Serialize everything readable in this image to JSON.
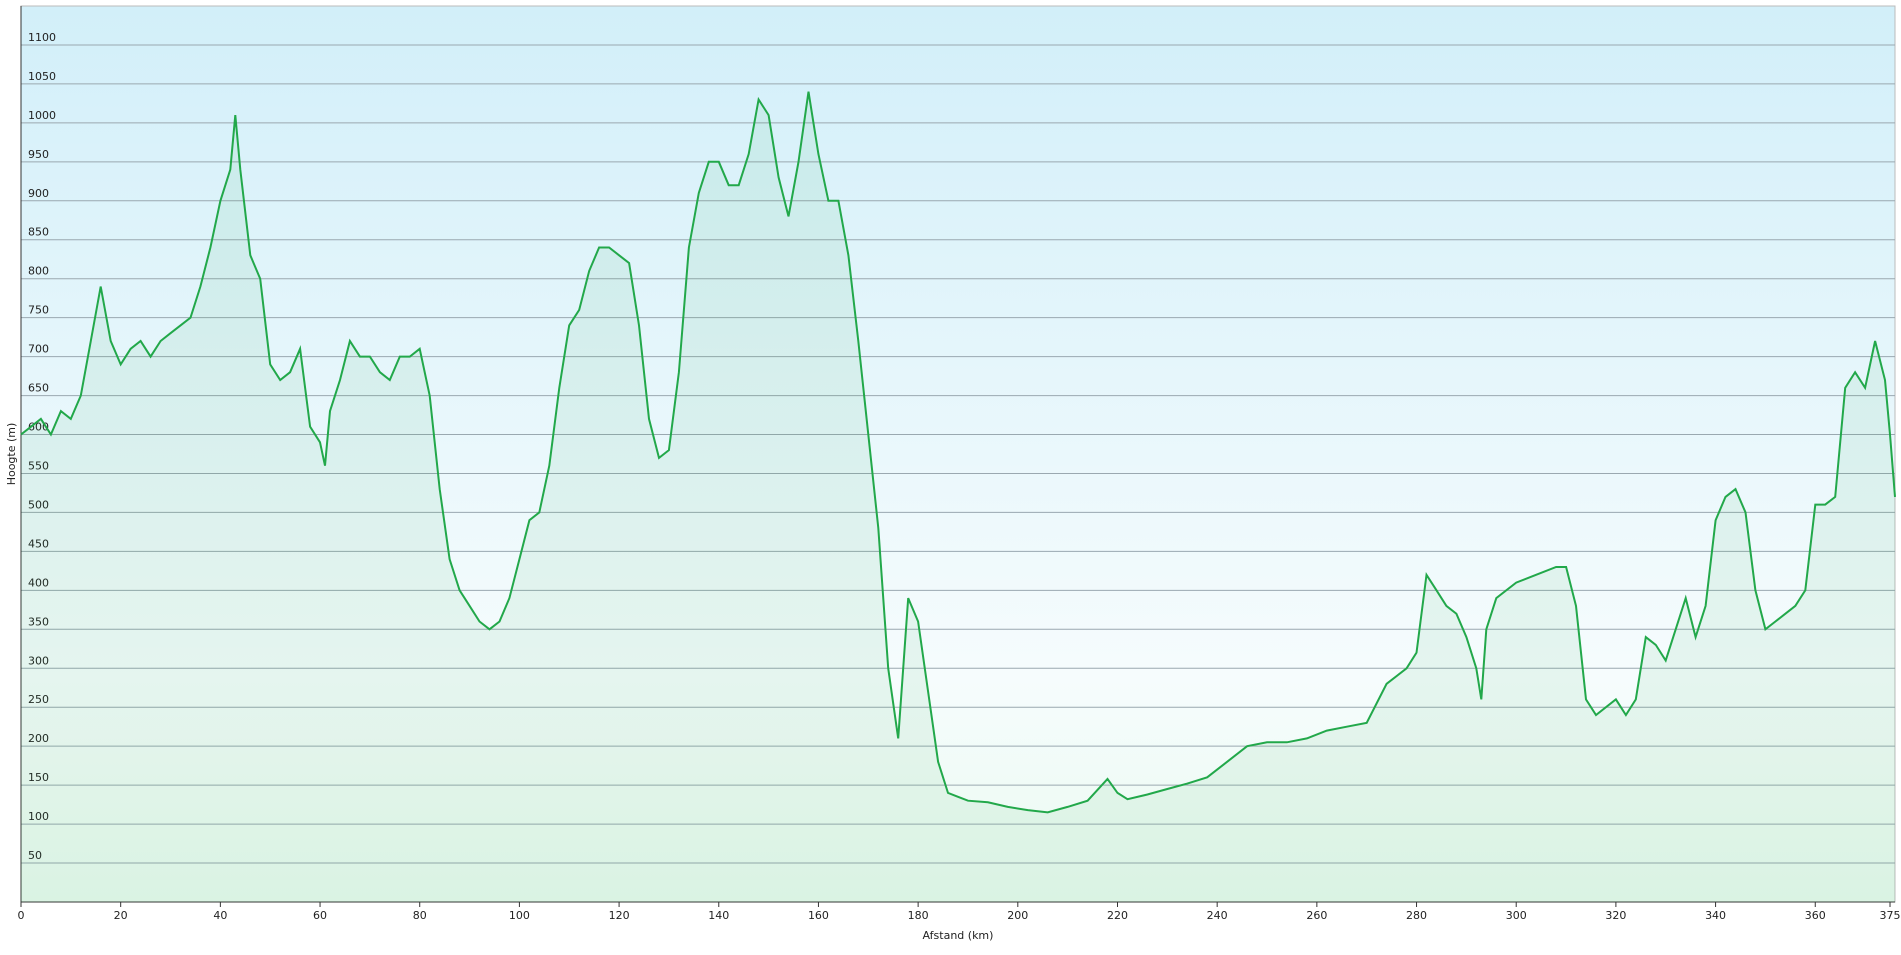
{
  "chart_data": {
    "type": "area",
    "x_label": "Afstand (km)",
    "y_label": "Hoogte (m)",
    "color": "#22a84a",
    "xlim": [
      0,
      376
    ],
    "ylim": [
      0,
      1150
    ],
    "xticks": [
      0,
      20,
      40,
      60,
      80,
      100,
      120,
      140,
      160,
      180,
      200,
      220,
      240,
      260,
      280,
      300,
      320,
      340,
      360,
      375
    ],
    "yticks": [
      50,
      100,
      150,
      200,
      250,
      300,
      350,
      400,
      450,
      500,
      550,
      600,
      650,
      700,
      750,
      800,
      850,
      900,
      950,
      1000,
      1050,
      1100
    ],
    "grid": true,
    "x": [
      0,
      2,
      4,
      6,
      8,
      10,
      12,
      14,
      16,
      18,
      20,
      22,
      24,
      26,
      28,
      30,
      32,
      34,
      36,
      38,
      40,
      42,
      43,
      44,
      46,
      48,
      50,
      52,
      54,
      56,
      58,
      60,
      61,
      62,
      64,
      66,
      68,
      70,
      72,
      74,
      76,
      78,
      80,
      82,
      84,
      86,
      88,
      90,
      92,
      94,
      96,
      98,
      100,
      102,
      104,
      106,
      108,
      110,
      112,
      114,
      116,
      118,
      120,
      122,
      124,
      126,
      128,
      130,
      132,
      134,
      136,
      138,
      140,
      142,
      144,
      146,
      148,
      150,
      152,
      154,
      156,
      158,
      160,
      162,
      164,
      166,
      168,
      170,
      172,
      174,
      176,
      178,
      180,
      182,
      184,
      186,
      188,
      190,
      194,
      198,
      202,
      206,
      210,
      214,
      218,
      220,
      222,
      226,
      230,
      234,
      238,
      242,
      246,
      250,
      254,
      258,
      262,
      266,
      270,
      274,
      278,
      280,
      282,
      284,
      286,
      288,
      290,
      292,
      293,
      294,
      296,
      300,
      304,
      308,
      310,
      312,
      314,
      316,
      320,
      322,
      324,
      326,
      328,
      330,
      332,
      334,
      336,
      338,
      340,
      342,
      344,
      346,
      348,
      350,
      352,
      354,
      356,
      358,
      360,
      362,
      364,
      366,
      368,
      370,
      372,
      374,
      375,
      376
    ],
    "values": [
      600,
      610,
      620,
      600,
      630,
      620,
      650,
      720,
      790,
      720,
      690,
      710,
      720,
      700,
      720,
      730,
      740,
      750,
      790,
      840,
      900,
      940,
      1010,
      940,
      830,
      800,
      690,
      670,
      680,
      710,
      610,
      590,
      560,
      630,
      670,
      720,
      700,
      700,
      680,
      670,
      700,
      700,
      710,
      650,
      530,
      440,
      400,
      380,
      360,
      350,
      360,
      390,
      440,
      490,
      500,
      560,
      660,
      740,
      760,
      810,
      840,
      840,
      830,
      820,
      740,
      620,
      570,
      580,
      680,
      840,
      910,
      950,
      950,
      920,
      920,
      960,
      1030,
      1010,
      930,
      880,
      950,
      1040,
      960,
      900,
      900,
      830,
      720,
      600,
      480,
      300,
      210,
      390,
      360,
      270,
      180,
      140,
      135,
      130,
      128,
      122,
      118,
      115,
      122,
      130,
      158,
      140,
      132,
      138,
      145,
      152,
      160,
      180,
      200,
      205,
      205,
      210,
      220,
      225,
      230,
      280,
      300,
      320,
      420,
      400,
      380,
      370,
      340,
      300,
      260,
      350,
      390,
      410,
      420,
      430,
      430,
      380,
      260,
      240,
      260,
      240,
      260,
      340,
      330,
      310,
      350,
      390,
      340,
      380,
      490,
      520,
      530,
      500,
      400,
      350,
      360,
      370,
      380,
      400,
      510,
      510,
      520,
      660,
      680,
      660,
      720,
      670,
      600,
      520
    ]
  }
}
